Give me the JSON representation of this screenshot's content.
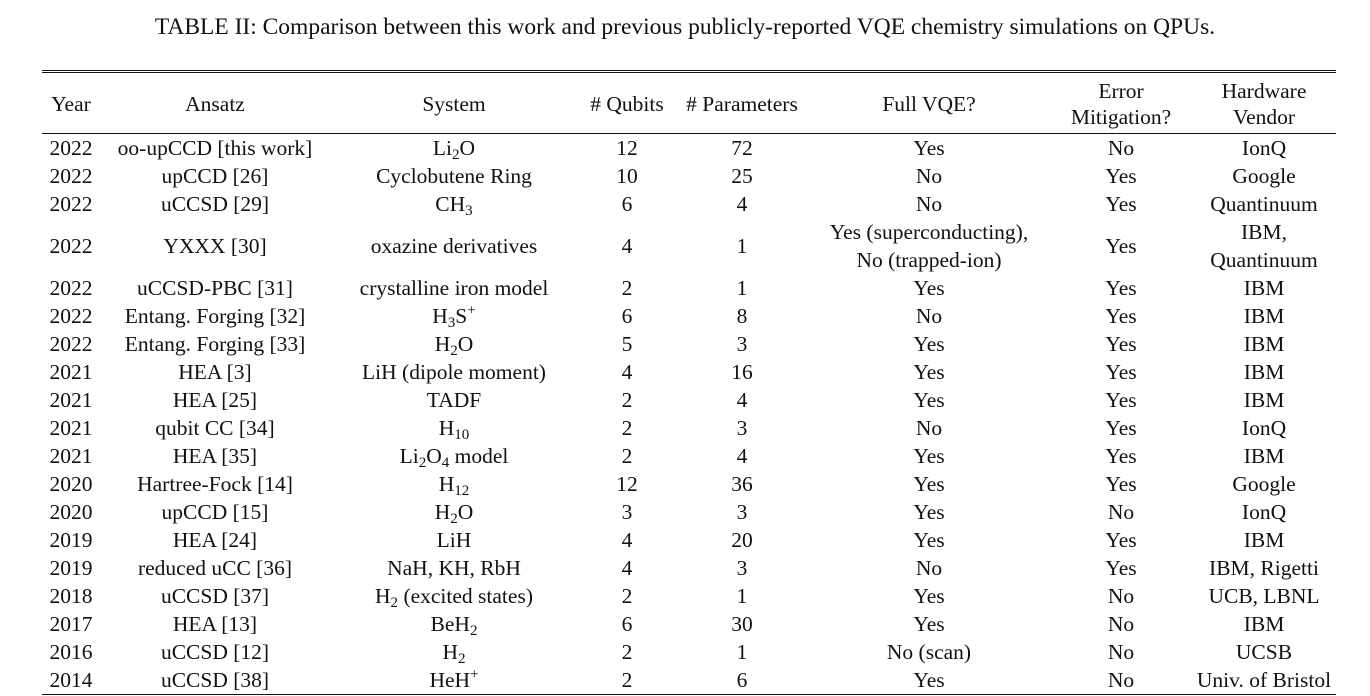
{
  "caption": "TABLE II: Comparison between this work and previous publicly-reported VQE chemistry simulations on QPUs.",
  "headers": {
    "year": "Year",
    "ansatz": "Ansatz",
    "system": "System",
    "qubits": "# Qubits",
    "parameters": "# Parameters",
    "full_vqe": "Full VQE?",
    "error_mitigation_line1": "Error",
    "error_mitigation_line2": "Mitigation?",
    "hardware_vendor_line1": "Hardware",
    "hardware_vendor_line2": "Vendor"
  },
  "rows": [
    {
      "year": "2022",
      "ansatz": "oo-upCCD [this work]",
      "system": [
        {
          "t": "Li"
        },
        {
          "sub": "2"
        },
        {
          "t": "O"
        }
      ],
      "qubits": "12",
      "parameters": "72",
      "full_vqe": [
        "Yes"
      ],
      "error_mitigation": "No",
      "vendor": [
        "IonQ"
      ]
    },
    {
      "year": "2022",
      "ansatz": "upCCD [26]",
      "system": [
        {
          "t": "Cyclobutene Ring"
        }
      ],
      "qubits": "10",
      "parameters": "25",
      "full_vqe": [
        "No"
      ],
      "error_mitigation": "Yes",
      "vendor": [
        "Google"
      ]
    },
    {
      "year": "2022",
      "ansatz": "uCCSD [29]",
      "system": [
        {
          "t": "CH"
        },
        {
          "sub": "3"
        }
      ],
      "qubits": "6",
      "parameters": "4",
      "full_vqe": [
        "No"
      ],
      "error_mitigation": "Yes",
      "vendor": [
        "Quantinuum"
      ]
    },
    {
      "year": "2022",
      "ansatz": "YXXX [30]",
      "system": [
        {
          "t": "oxazine derivatives"
        }
      ],
      "qubits": "4",
      "parameters": "1",
      "full_vqe": [
        "Yes (superconducting),",
        "No (trapped-ion)"
      ],
      "error_mitigation": "Yes",
      "vendor": [
        "IBM,",
        "Quantinuum"
      ]
    },
    {
      "year": "2022",
      "ansatz": "uCCSD-PBC [31]",
      "system": [
        {
          "t": "crystalline iron model"
        }
      ],
      "qubits": "2",
      "parameters": "1",
      "full_vqe": [
        "Yes"
      ],
      "error_mitigation": "Yes",
      "vendor": [
        "IBM"
      ]
    },
    {
      "year": "2022",
      "ansatz": "Entang. Forging [32]",
      "system": [
        {
          "t": "H"
        },
        {
          "sub": "3"
        },
        {
          "t": "S"
        },
        {
          "sup": "+"
        }
      ],
      "qubits": "6",
      "parameters": "8",
      "full_vqe": [
        "No"
      ],
      "error_mitigation": "Yes",
      "vendor": [
        "IBM"
      ]
    },
    {
      "year": "2022",
      "ansatz": "Entang. Forging [33]",
      "system": [
        {
          "t": "H"
        },
        {
          "sub": "2"
        },
        {
          "t": "O"
        }
      ],
      "qubits": "5",
      "parameters": "3",
      "full_vqe": [
        "Yes"
      ],
      "error_mitigation": "Yes",
      "vendor": [
        "IBM"
      ]
    },
    {
      "year": "2021",
      "ansatz": "HEA [3]",
      "system": [
        {
          "t": "LiH (dipole moment)"
        }
      ],
      "qubits": "4",
      "parameters": "16",
      "full_vqe": [
        "Yes"
      ],
      "error_mitigation": "Yes",
      "vendor": [
        "IBM"
      ]
    },
    {
      "year": "2021",
      "ansatz": "HEA [25]",
      "system": [
        {
          "t": "TADF"
        }
      ],
      "qubits": "2",
      "parameters": "4",
      "full_vqe": [
        "Yes"
      ],
      "error_mitigation": "Yes",
      "vendor": [
        "IBM"
      ]
    },
    {
      "year": "2021",
      "ansatz": "qubit CC [34]",
      "system": [
        {
          "t": "H"
        },
        {
          "sub": "10"
        }
      ],
      "qubits": "2",
      "parameters": "3",
      "full_vqe": [
        "No"
      ],
      "error_mitigation": "Yes",
      "vendor": [
        "IonQ"
      ]
    },
    {
      "year": "2021",
      "ansatz": "HEA [35]",
      "system": [
        {
          "t": "Li"
        },
        {
          "sub": "2"
        },
        {
          "t": "O"
        },
        {
          "sub": "4"
        },
        {
          "t": " model"
        }
      ],
      "qubits": "2",
      "parameters": "4",
      "full_vqe": [
        "Yes"
      ],
      "error_mitigation": "Yes",
      "vendor": [
        "IBM"
      ]
    },
    {
      "year": "2020",
      "ansatz": "Hartree-Fock [14]",
      "system": [
        {
          "t": "H"
        },
        {
          "sub": "12"
        }
      ],
      "qubits": "12",
      "parameters": "36",
      "full_vqe": [
        "Yes"
      ],
      "error_mitigation": "Yes",
      "vendor": [
        "Google"
      ]
    },
    {
      "year": "2020",
      "ansatz": "upCCD [15]",
      "system": [
        {
          "t": "H"
        },
        {
          "sub": "2"
        },
        {
          "t": "O"
        }
      ],
      "qubits": "3",
      "parameters": "3",
      "full_vqe": [
        "Yes"
      ],
      "error_mitigation": "No",
      "vendor": [
        "IonQ"
      ]
    },
    {
      "year": "2019",
      "ansatz": "HEA [24]",
      "system": [
        {
          "t": "LiH"
        }
      ],
      "qubits": "4",
      "parameters": "20",
      "full_vqe": [
        "Yes"
      ],
      "error_mitigation": "Yes",
      "vendor": [
        "IBM"
      ]
    },
    {
      "year": "2019",
      "ansatz": "reduced uCC [36]",
      "system": [
        {
          "t": "NaH, KH, RbH"
        }
      ],
      "qubits": "4",
      "parameters": "3",
      "full_vqe": [
        "No"
      ],
      "error_mitigation": "Yes",
      "vendor": [
        "IBM, Rigetti"
      ]
    },
    {
      "year": "2018",
      "ansatz": "uCCSD [37]",
      "system": [
        {
          "t": "H"
        },
        {
          "sub": "2"
        },
        {
          "t": " (excited states)"
        }
      ],
      "qubits": "2",
      "parameters": "1",
      "full_vqe": [
        "Yes"
      ],
      "error_mitigation": "No",
      "vendor": [
        "UCB, LBNL"
      ]
    },
    {
      "year": "2017",
      "ansatz": "HEA [13]",
      "system": [
        {
          "t": "BeH"
        },
        {
          "sub": "2"
        }
      ],
      "qubits": "6",
      "parameters": "30",
      "full_vqe": [
        "Yes"
      ],
      "error_mitigation": "No",
      "vendor": [
        "IBM"
      ]
    },
    {
      "year": "2016",
      "ansatz": "uCCSD [12]",
      "system": [
        {
          "t": "H"
        },
        {
          "sub": "2"
        }
      ],
      "qubits": "2",
      "parameters": "1",
      "full_vqe": [
        "No (scan)"
      ],
      "error_mitigation": "No",
      "vendor": [
        "UCSB"
      ]
    },
    {
      "year": "2014",
      "ansatz": "uCCSD [38]",
      "system": [
        {
          "t": "HeH"
        },
        {
          "sup": "+"
        }
      ],
      "qubits": "2",
      "parameters": "6",
      "full_vqe": [
        "Yes"
      ],
      "error_mitigation": "No",
      "vendor": [
        "Univ. of Bristol"
      ]
    }
  ]
}
